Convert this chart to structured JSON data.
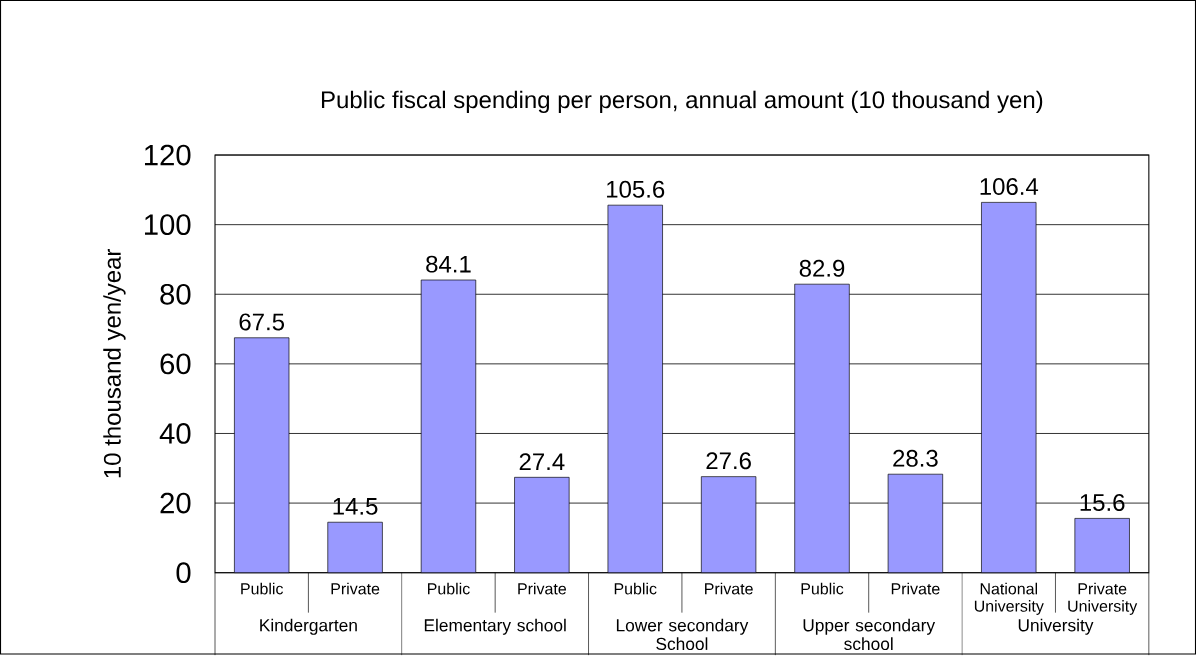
{
  "chart_data": {
    "type": "bar",
    "title": "Public fiscal spending per person, annual amount (10 thousand yen)",
    "ylabel": "10 thousand yen/year",
    "categories": [
      "Public",
      "Private",
      "Public",
      "Private",
      "Public",
      "Private",
      "Public",
      "Private",
      "National University",
      "Private University"
    ],
    "values": [
      67.5,
      14.5,
      84.1,
      27.4,
      105.6,
      27.6,
      82.9,
      28.3,
      106.4,
      15.6
    ],
    "color": "#9999ff",
    "ylim": [
      0,
      120
    ],
    "yticks": [
      0,
      20,
      40,
      60,
      80,
      100,
      120
    ],
    "grid": "y",
    "data_labels": true,
    "annotations": [
      "Kindergarten",
      "Elementary school",
      "Lower secondary School",
      "Upper secondary school",
      "University"
    ]
  }
}
